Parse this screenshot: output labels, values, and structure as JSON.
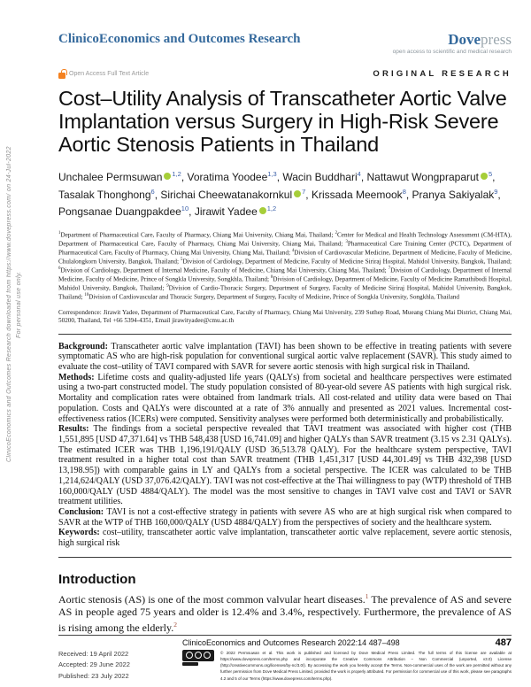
{
  "colors": {
    "journal_blue": "#34699C",
    "oa_orange": "#F48120",
    "orcid_green": "#A6CE39",
    "sup_blue": "#3A5FA8"
  },
  "masthead": {
    "journal_name": "ClinicoEconomics and Outcomes Research",
    "dove_bold": "Dove",
    "dove_light": "press",
    "tagline": "open access to scientific and medical research",
    "open_access_label": "Open Access Full Text Article",
    "article_type": "ORIGINAL RESEARCH"
  },
  "sidebar": {
    "line1": "ClinicoEconomics and Outcomes Research downloaded from https://www.dovepress.com/ on 24-Jul-2022",
    "line2": "For personal use only."
  },
  "article": {
    "title": "Cost–Utility Analysis of Transcatheter Aortic Valve Implantation versus Surgery in High-Risk Severe Aortic Stenosis Patients in Thailand",
    "authors": [
      {
        "name": "Unchalee Permsuwan",
        "sup": "1,2",
        "orcid": true
      },
      {
        "name": "Voratima Yoodee",
        "sup": "1,3",
        "orcid": false
      },
      {
        "name": "Wacin Buddhari",
        "sup": "4",
        "orcid": false
      },
      {
        "name": "Nattawut Wongpraparut",
        "sup": "5",
        "orcid": true
      },
      {
        "name": "Tasalak Thonghong",
        "sup": "6",
        "orcid": false
      },
      {
        "name": "Sirichai Cheewatanakornkul",
        "sup": "7",
        "orcid": true
      },
      {
        "name": "Krissada Meemook",
        "sup": "8",
        "orcid": false
      },
      {
        "name": "Pranya Sakiyalak",
        "sup": "9",
        "orcid": false
      },
      {
        "name": "Pongsanae Duangpakdee",
        "sup": "10",
        "orcid": false
      },
      {
        "name": "Jirawit Yadee",
        "sup": "1,2",
        "orcid": true
      }
    ],
    "affiliations": [
      {
        "num": "1",
        "text": "Department of Pharmaceutical Care, Faculty of Pharmacy, Chiang Mai University, Chiang Mai, Thailand; "
      },
      {
        "num": "2",
        "text": "Center for Medical and Health Technology Assessment (CM-HTA), Department of Pharmaceutical Care, Faculty of Pharmacy, Chiang Mai University, Chiang Mai, Thailand; "
      },
      {
        "num": "3",
        "text": "Pharmaceutical Care Training Center (PCTC), Department of Pharmaceutical Care, Faculty of Pharmacy, Chiang Mai University, Chiang Mai, Thailand; "
      },
      {
        "num": "4",
        "text": "Division of Cardiovascular Medicine, Department of Medicine, Faculty of Medicine, Chulalongkorn University, Bangkok, Thailand; "
      },
      {
        "num": "5",
        "text": "Division of Cardiology, Department of Medicine, Faculty of Medicine Siriraj Hospital, Mahidol University, Bangkok, Thailand; "
      },
      {
        "num": "6",
        "text": "Division of Cardiology, Department of Internal Medicine, Faculty of Medicine, Chiang Mai University, Chiang Mai, Thailand; "
      },
      {
        "num": "7",
        "text": "Division of Cardiology, Department of Internal Medicine, Faculty of Medicine, Prince of Songkla University, Songkhla, Thailand; "
      },
      {
        "num": "8",
        "text": "Division of Cardiology, Department of Medicine, Faculty of Medicine Ramathibodi Hospital, Mahidol University, Bangkok, Thailand; "
      },
      {
        "num": "9",
        "text": "Division of Cardio-Thoracic Surgery, Department of Surgery, Faculty of Medicine Siriraj Hospital, Mahidol University, Bangkok, Thailand; "
      },
      {
        "num": "10",
        "text": "Division of Cardiovascular and Thoracic Surgery, Department of Surgery, Faculty of Medicine, Prince of Songkla University, Songkhla, Thailand"
      }
    ],
    "correspondence": {
      "label": "Correspondence: ",
      "text": "Jirawit Yadee, Department of Pharmaceutical Care, Faculty of Pharmacy, Chiang Mai University, 239 Suthep Road, Mueang Chiang Mai District, Chiang Mai, 50200, Thailand, Tel +66 5394-4351, Email ",
      "email": "jirawityadee@cmu.ac.th"
    }
  },
  "abstract": {
    "background": {
      "label": "Background: ",
      "text": "Transcatheter aortic valve implantation (TAVI) has been shown to be effective in treating patients with severe symptomatic AS who are high-risk population for conventional surgical aortic valve replacement (SAVR). This study aimed to evaluate the cost–utility of TAVI compared with SAVR for severe aortic stenosis with high surgical risk in Thailand."
    },
    "methods": {
      "label": "Methods: ",
      "text": "Lifetime costs and quality-adjusted life years (QALYs) from societal and healthcare perspectives were estimated using a two-part constructed model. The study population consisted of 80-year-old severe AS patients with high surgical risk. Mortality and complication rates were obtained from landmark trials. All cost-related and utility data were based on Thai population. Costs and QALYs were discounted at a rate of 3% annually and presented as 2021 values. Incremental cost-effectiveness ratios (ICERs) were computed. Sensitivity analyses were performed both deterministically and probabilistically."
    },
    "results": {
      "label": "Results: ",
      "text": "The findings from a societal perspective revealed that TAVI treatment was associated with higher cost (THB 1,551,895 [USD 47,371.64] vs THB 548,438 [USD 16,741.09] and higher QALYs than SAVR treatment (3.15 vs 2.31 QALYs). The estimated ICER was THB 1,196,191/QALY (USD 36,513.78 QALY). For the healthcare system perspective, TAVI treatment resulted in a higher total cost than SAVR treatment (THB 1,451,317 [USD 44,301.49] vs THB 432,398 [USD 13,198.95]) with comparable gains in LY and QALYs from a societal perspective. The ICER was calculated to be THB 1,214,624/QALY (USD 37,076.42/QALY). TAVI was not cost-effective at the Thai willingness to pay (WTP) threshold of THB 160,000/QALY (USD 4884/QALY). The model was the most sensitive to changes in TAVI valve cost and TAVI or SAVR treatment utilities."
    },
    "conclusion": {
      "label": "Conclusion: ",
      "text": "TAVI is not a cost-effective strategy in patients with severe AS who are at high surgical risk when compared to SAVR at the WTP of THB 160,000/QALY (USD 4884/QALY) from the perspectives of society and the healthcare system."
    },
    "keywords": {
      "label": "Keywords: ",
      "text": "cost–utility, transcatheter aortic valve implantation, transcatheter aortic valve replacement, severe aortic stenosis, high surgical risk"
    }
  },
  "introduction": {
    "heading": "Introduction",
    "p1": "Aortic stenosis (AS) is one of the most common valvular heart diseases.",
    "ref1": "1",
    "p2": " The prevalence of AS and severe AS in people aged 75 years and older is 12.4% and 3.4%, respectively. Furthermore, the prevalence of AS is rising among the elderly.",
    "ref2": "2"
  },
  "footer": {
    "dates": [
      "Received: 19 April 2022",
      "Accepted: 29 June 2022",
      "Published: 23 July 2022"
    ],
    "citation": "ClinicoEconomics and Outcomes Research 2022:14 487–498",
    "page_number": "487",
    "license_text": "© 2022 Permsuwan et al. This work is published and licensed by Dove Medical Press Limited. The full terms of this license are available at https://www.dovepress.com/terms.php and incorporate the Creative Commons Attribution – Non Commercial (unported, v3.0) License (http://creativecommons.org/licenses/by-nc/3.0/). By accessing the work you hereby accept the Terms. Non-commercial uses of the work are permitted without any further permission from Dove Medical Press Limited, provided the work is properly attributed. For permission for commercial use of this work, please see paragraphs 4.2 and 5 of our Terms (https://www.dovepress.com/terms.php)."
  }
}
